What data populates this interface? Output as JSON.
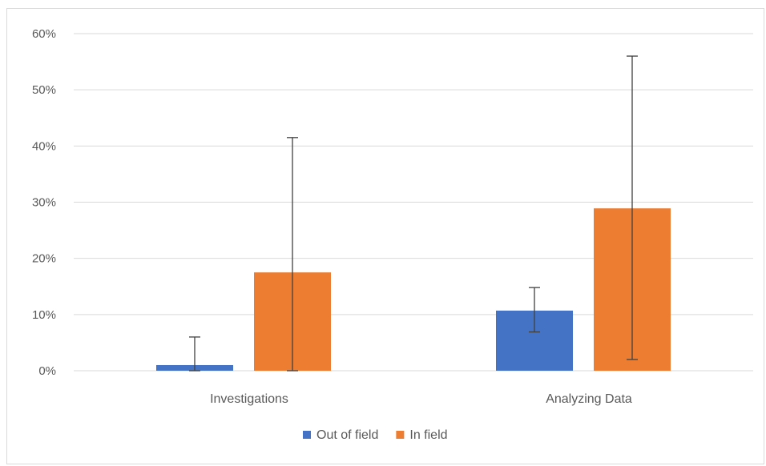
{
  "chart_data": {
    "type": "bar",
    "categories": [
      "Investigations",
      "Analyzing Data"
    ],
    "series": [
      {
        "name": "Out of field",
        "color": "#4472c4",
        "values": [
          0.01,
          0.107
        ],
        "error_low": [
          0.0,
          0.069
        ],
        "error_high": [
          0.06,
          0.148
        ]
      },
      {
        "name": "In field",
        "color": "#ed7d31",
        "values": [
          0.175,
          0.289
        ],
        "error_low": [
          0.0,
          0.02
        ],
        "error_high": [
          0.415,
          0.56
        ]
      }
    ],
    "yticks": [
      "0%",
      "10%",
      "20%",
      "30%",
      "40%",
      "50%",
      "60%"
    ],
    "ylim": [
      0,
      0.6
    ],
    "xlabel": "",
    "ylabel": "",
    "grid": true,
    "legend_position": "bottom",
    "gridline_color": "#d9d9d9",
    "error_bar_color": "#404040"
  }
}
